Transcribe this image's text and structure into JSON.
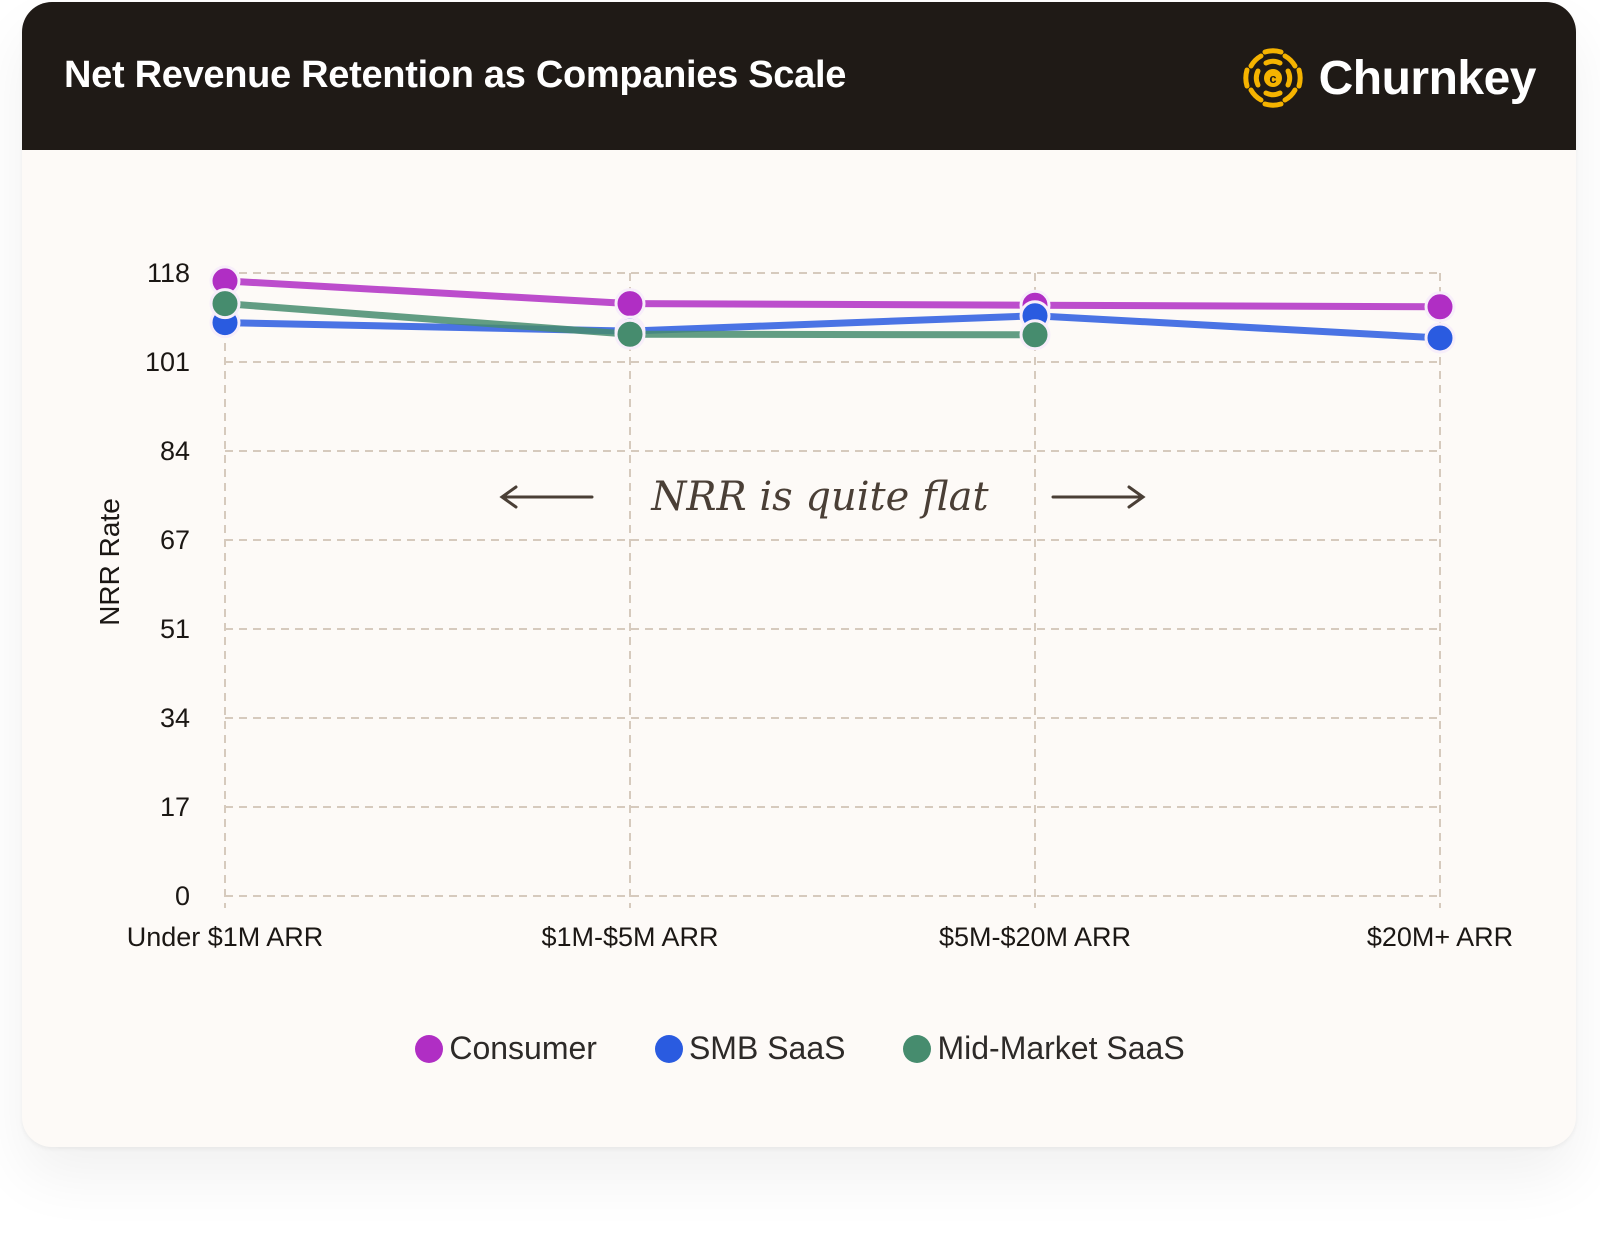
{
  "header": {
    "title": "Net Revenue Retention as Companies Scale",
    "brand_name": "Churnkey",
    "brand_icon": "churnkey-logo-icon",
    "brand_color": "#f5b300"
  },
  "chart_data": {
    "type": "line",
    "title": "Net Revenue Retention as Companies Scale",
    "xlabel": "",
    "ylabel": "NRR Rate",
    "categories": [
      "Under $1M ARR",
      "$1M-$5M ARR",
      "$5M-$20M ARR",
      "$20M+ ARR"
    ],
    "yticks": [
      0,
      17,
      34,
      51,
      67,
      84,
      101,
      118
    ],
    "ylim": [
      0,
      118
    ],
    "grid": true,
    "legend_position": "bottom",
    "annotation": "NRR is quite flat",
    "series": [
      {
        "name": "Consumer",
        "color": "#b02ec4",
        "values": [
          116.5,
          112.2,
          111.9,
          111.6
        ]
      },
      {
        "name": "SMB SaaS",
        "color": "#2a5be0",
        "values": [
          108.6,
          107.0,
          109.9,
          105.7
        ]
      },
      {
        "name": "Mid-Market SaaS",
        "color": "#468c6e",
        "values": [
          112.2,
          106.4,
          106.3,
          null
        ]
      }
    ]
  }
}
